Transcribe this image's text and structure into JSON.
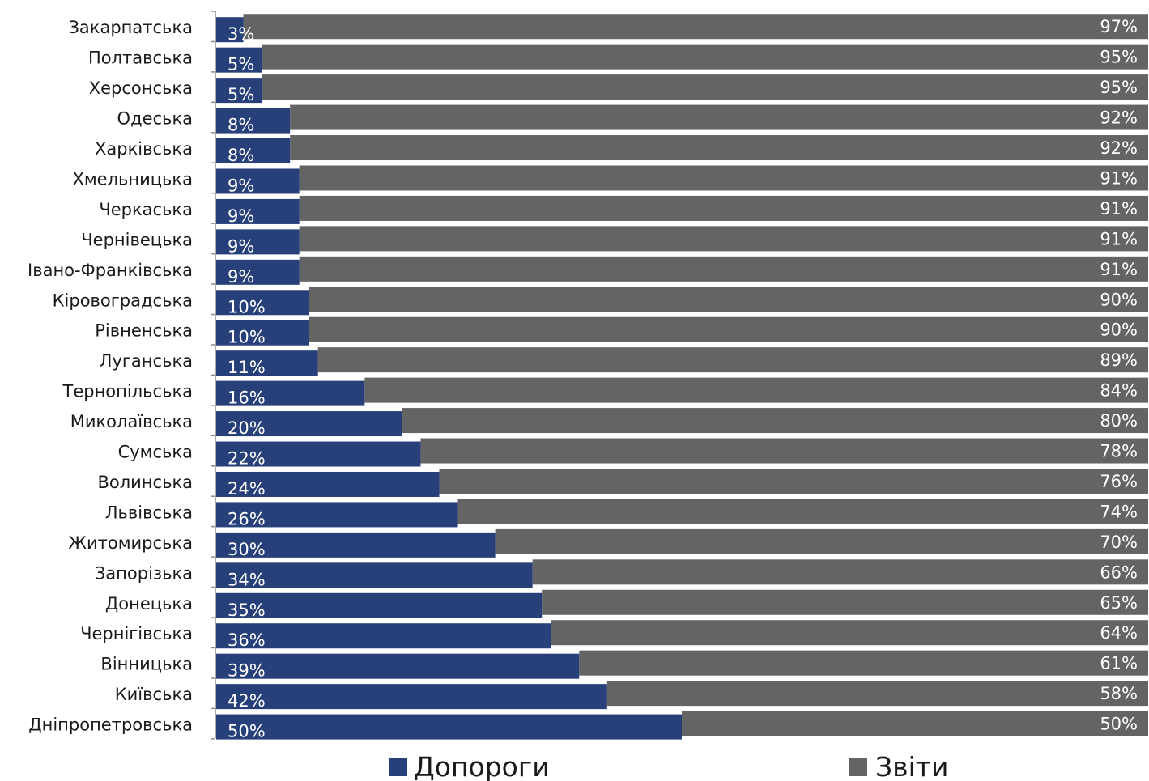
{
  "chart_data": {
    "type": "bar",
    "orientation": "horizontal",
    "stacked": true,
    "categories": [
      "Закарпатська",
      "Полтавська",
      "Херсонська",
      "Одеська",
      "Харківська",
      "Хмельницька",
      "Черкаська",
      "Чернівецька",
      "Івано-Франківська",
      "Кіровоградська",
      "Рівненська",
      "Луганська",
      "Тернопільська",
      "Миколаївська",
      "Сумська",
      "Волинська",
      "Львівська",
      "Житомирська",
      "Запорізька",
      "Донецька",
      "Чернігівська",
      "Вінницька",
      "Київська",
      "Дніпропетровська"
    ],
    "series": [
      {
        "name": "Допороги",
        "color": "#27407a",
        "values": [
          3,
          5,
          5,
          8,
          8,
          9,
          9,
          9,
          9,
          10,
          10,
          11,
          16,
          20,
          22,
          24,
          26,
          30,
          34,
          35,
          36,
          39,
          42,
          50
        ],
        "labels": [
          "3%",
          "5%",
          "5%",
          "8%",
          "8%",
          "9%",
          "9%",
          "9%",
          "9%",
          "10%",
          "10%",
          "11%",
          "16%",
          "20%",
          "22%",
          "24%",
          "26%",
          "30%",
          "34%",
          "35%",
          "36%",
          "39%",
          "42%",
          "50%"
        ]
      },
      {
        "name": "Звіти",
        "color": "#646464",
        "values": [
          97,
          95,
          95,
          92,
          92,
          91,
          91,
          91,
          91,
          90,
          90,
          89,
          84,
          80,
          78,
          76,
          74,
          70,
          66,
          65,
          64,
          61,
          58,
          50
        ],
        "labels": [
          "97%",
          "95%",
          "95%",
          "92%",
          "92%",
          "91%",
          "91%",
          "91%",
          "91%",
          "90%",
          "90%",
          "89%",
          "84%",
          "80%",
          "78%",
          "76%",
          "74%",
          "70%",
          "66%",
          "65%",
          "64%",
          "61%",
          "58%",
          "50%"
        ]
      }
    ],
    "xlim": [
      0,
      100
    ],
    "grid": false,
    "legend_position": "bottom"
  }
}
